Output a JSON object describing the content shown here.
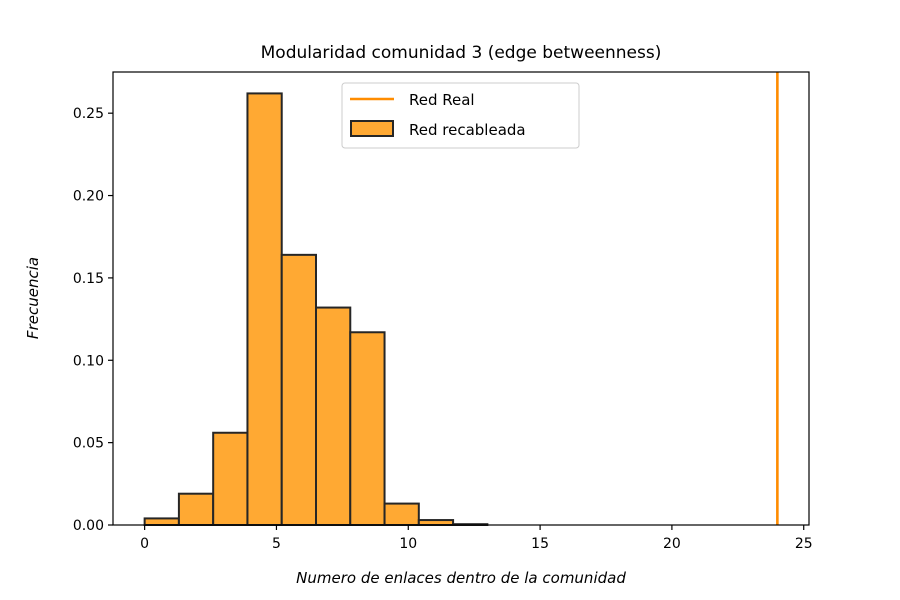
{
  "chart_data": {
    "type": "bar",
    "title": "Modularidad comunidad 3 (edge betweenness)",
    "xlabel": "Numero de enlaces dentro de la comunidad",
    "ylabel": "Frecuencia",
    "xlim": [
      -1.2,
      25.2
    ],
    "ylim": [
      0,
      0.275
    ],
    "x_ticks": [
      0,
      5,
      10,
      15,
      20,
      25
    ],
    "y_ticks": [
      0.0,
      0.05,
      0.1,
      0.15,
      0.2,
      0.25
    ],
    "x_tick_labels": [
      "0",
      "5",
      "10",
      "15",
      "20",
      "25"
    ],
    "y_tick_labels": [
      "0.00",
      "0.05",
      "0.10",
      "0.15",
      "0.20",
      "0.25"
    ],
    "grid": false,
    "legend": {
      "placement": "top-center",
      "entries": [
        "Red Real",
        "Red recableada"
      ]
    },
    "series": [
      {
        "name": "Red recableada",
        "kind": "histogram",
        "bin_edges": [
          0,
          1.3,
          2.6,
          3.9,
          5.2,
          6.5,
          7.8,
          9.1,
          10.4,
          11.7,
          13.0
        ],
        "values": [
          0.004,
          0.019,
          0.056,
          0.262,
          0.164,
          0.132,
          0.117,
          0.013,
          0.003,
          0.0005
        ],
        "color": "#ffa933",
        "edgecolor": "#262626"
      },
      {
        "name": "Red Real",
        "kind": "vline",
        "x": 24,
        "color": "#ff8c00"
      }
    ]
  }
}
